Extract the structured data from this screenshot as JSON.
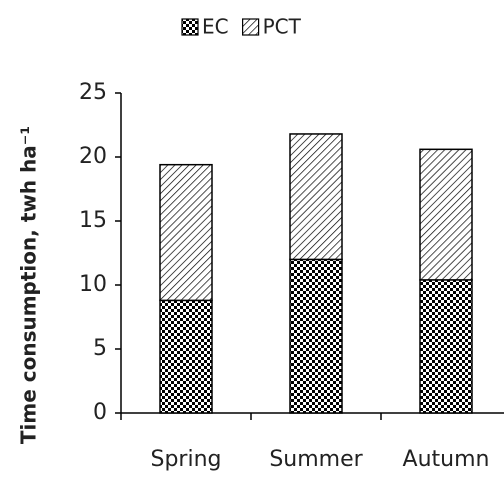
{
  "chart_data": {
    "type": "stacked_bar",
    "y_label": "Time consumption, twh ha⁻¹",
    "categories": [
      "Spring",
      "Summer",
      "Autumn"
    ],
    "series": [
      {
        "name": "EC",
        "color": "#000000",
        "values": [
          8.8,
          12.0,
          10.4
        ]
      },
      {
        "name": "PCT",
        "color": "#000000",
        "values": [
          10.6,
          9.8,
          10.2
        ]
      }
    ],
    "ylim": [
      0,
      25
    ],
    "yticks": [
      0,
      5,
      10,
      15,
      20,
      25
    ],
    "legend": "top"
  }
}
